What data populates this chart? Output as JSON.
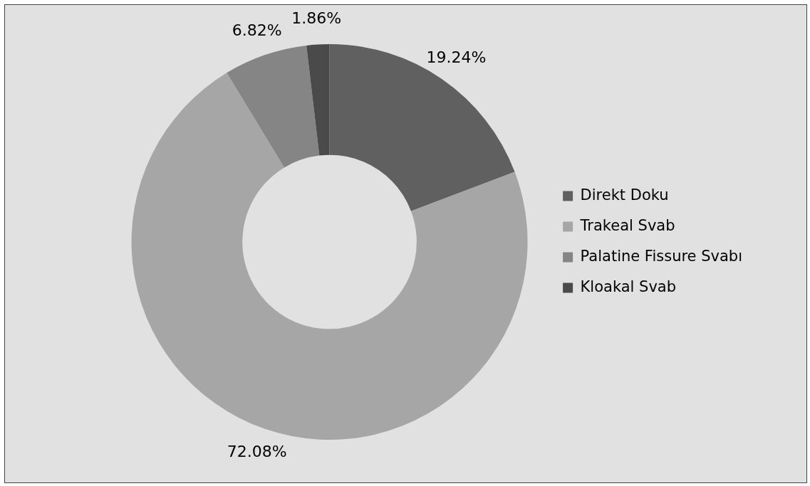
{
  "chart_data": {
    "type": "donut",
    "categories": [
      "Direkt Doku",
      "Trakeal Svab",
      "Palatine Fissure Svabı",
      "Kloakal Svab"
    ],
    "values": [
      19.24,
      72.08,
      6.82,
      1.86
    ],
    "value_labels": [
      "19.24%",
      "72.08%",
      "6.82%",
      "1.86%"
    ],
    "colors": [
      "#606060",
      "#a6a6a6",
      "#858585",
      "#4a4a4a"
    ],
    "legend": "right"
  }
}
